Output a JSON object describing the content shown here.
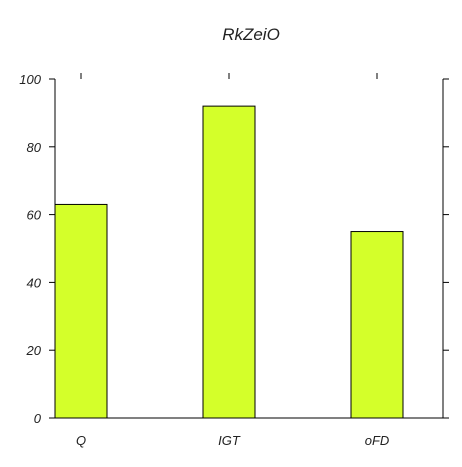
{
  "chart_data": {
    "type": "bar",
    "title": "RkZeiO",
    "xlabel": "",
    "ylabel": "",
    "categories": [
      "Q",
      "IGT",
      "oFD"
    ],
    "values": [
      63,
      92,
      55
    ],
    "ylim": [
      0,
      100
    ],
    "yticks": [
      0,
      20,
      40,
      60,
      80,
      100
    ],
    "bar_color": "#d4ff2a",
    "bar_edge_color": "#000000",
    "grid": false,
    "legend": "none"
  }
}
